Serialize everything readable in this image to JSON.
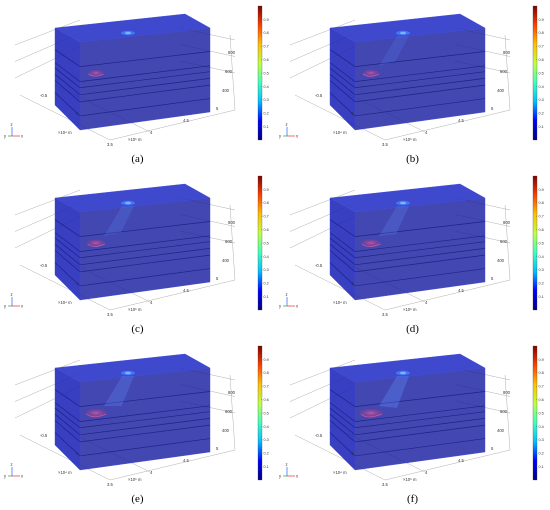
{
  "figure": {
    "panels": [
      {
        "label": "(a)",
        "plume": 0.15
      },
      {
        "label": "(b)",
        "plume": 0.3
      },
      {
        "label": "(c)",
        "plume": 0.45
      },
      {
        "label": "(d)",
        "plume": 0.6
      },
      {
        "label": "(e)",
        "plume": 0.8
      },
      {
        "label": "(f)",
        "plume": 1.0
      }
    ],
    "axes": {
      "x_ticks": [
        "-0.5",
        "-1"
      ],
      "x_unit": "×10⁴ m",
      "y_ticks": [
        "3.5",
        "4",
        "4.5",
        "5"
      ],
      "y_unit": "×10⁵ m",
      "z_ticks": [
        "800",
        "600",
        "400"
      ],
      "z_unit": "m",
      "triad": {
        "z": "z",
        "y": "y",
        "x": "x"
      }
    },
    "colorbar": {
      "ticks": [
        "0.9",
        "0.8",
        "0.7",
        "0.6",
        "0.5",
        "0.4",
        "0.3",
        "0.2",
        "0.1"
      ],
      "stops": [
        "#00007f",
        "#0000ff",
        "#00bfff",
        "#3fffbf",
        "#bfff3f",
        "#ffbf00",
        "#ff4000",
        "#7f0000"
      ]
    },
    "colors": {
      "block_top": "#2a35c8",
      "block_front": "#1e24b8",
      "block_side": "#1a1fa0",
      "layer_line": "#1a1f80",
      "grid": "#9a9a9a",
      "plume": "#c03070",
      "plume_core": "#e060a0",
      "hotspot": "#4080ff"
    }
  }
}
